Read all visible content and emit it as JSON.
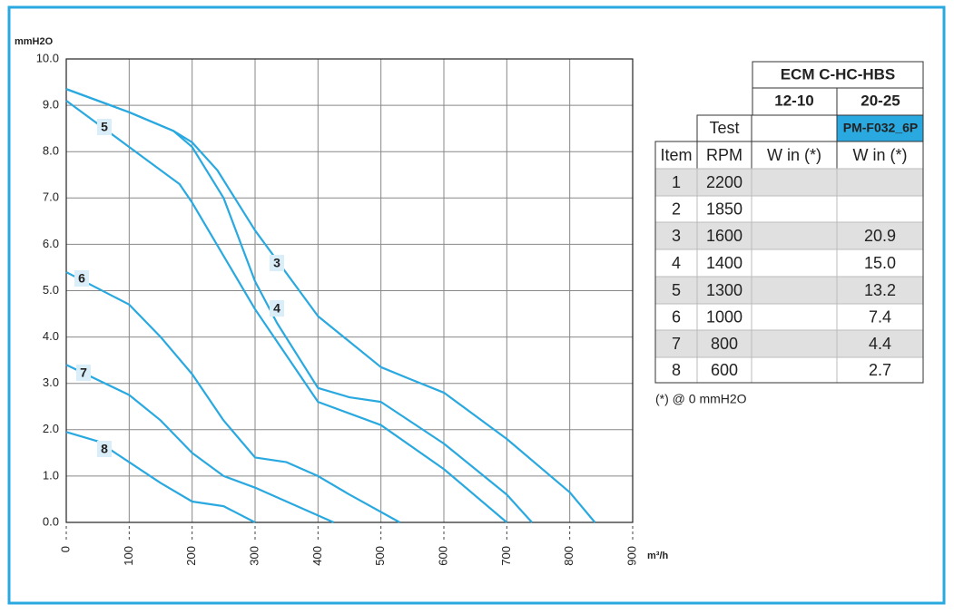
{
  "chart_data": {
    "type": "line",
    "y_label": "mmH2O",
    "x_label": "m³/h",
    "xlim": [
      0,
      900
    ],
    "xticks": [
      0,
      100,
      200,
      300,
      400,
      500,
      600,
      700,
      800,
      900
    ],
    "ylim": [
      0,
      10
    ],
    "yticks": [
      {
        "value": 0,
        "label": "0.0"
      },
      {
        "value": 1,
        "label": "1.0"
      },
      {
        "value": 2,
        "label": "2.0"
      },
      {
        "value": 3,
        "label": "3.0"
      },
      {
        "value": 4,
        "label": "4.0"
      },
      {
        "value": 5,
        "label": "5.0"
      },
      {
        "value": 6,
        "label": "6.0"
      },
      {
        "value": 7,
        "label": "7.0"
      },
      {
        "value": 8,
        "label": "8.0"
      },
      {
        "value": 9,
        "label": "9.0"
      },
      {
        "value": 10,
        "label": "10.0"
      }
    ],
    "grid": true,
    "series": [
      {
        "name": "3",
        "color": "#29a9e0",
        "x": [
          0,
          100,
          170,
          200,
          240,
          300,
          400,
          500,
          545,
          600,
          700,
          800,
          840
        ],
        "values": [
          9.35,
          8.85,
          8.45,
          8.2,
          7.6,
          6.3,
          4.45,
          3.35,
          3.1,
          2.8,
          1.8,
          0.65,
          0
        ]
      },
      {
        "name": "4",
        "color": "#29a9e0",
        "x": [
          0,
          100,
          170,
          200,
          250,
          300,
          335,
          400,
          450,
          500,
          600,
          700,
          740
        ],
        "values": [
          9.35,
          8.85,
          8.45,
          8.1,
          7.0,
          5.2,
          4.3,
          2.9,
          2.7,
          2.6,
          1.7,
          0.6,
          0
        ]
      },
      {
        "name": "5",
        "color": "#29a9e0",
        "x": [
          0,
          100,
          180,
          200,
          300,
          400,
          500,
          600,
          700
        ],
        "values": [
          9.1,
          8.1,
          7.3,
          6.9,
          4.6,
          2.6,
          2.1,
          1.15,
          0
        ]
      },
      {
        "name": "6",
        "color": "#29a9e0",
        "x": [
          0,
          100,
          150,
          200,
          250,
          300,
          350,
          400,
          450,
          530
        ],
        "values": [
          5.4,
          4.7,
          4.0,
          3.2,
          2.2,
          1.4,
          1.3,
          1.0,
          0.6,
          0
        ]
      },
      {
        "name": "7",
        "color": "#29a9e0",
        "x": [
          0,
          100,
          150,
          200,
          250,
          300,
          350,
          425
        ],
        "values": [
          3.4,
          2.75,
          2.2,
          1.5,
          1.0,
          0.75,
          0.45,
          0
        ]
      },
      {
        "name": "8",
        "color": "#29a9e0",
        "x": [
          0,
          50,
          100,
          150,
          200,
          250,
          300
        ],
        "values": [
          1.95,
          1.75,
          1.3,
          0.85,
          0.45,
          0.35,
          0
        ]
      }
    ]
  },
  "table": {
    "model": "ECM C-HC-HBS",
    "size_a": "12-10",
    "size_b": "20-25",
    "test": "Test",
    "motor": "PM-F032_6P",
    "headers": [
      "Item",
      "RPM",
      "W in (*)",
      "W in (*)"
    ],
    "rows": [
      {
        "item": "1",
        "rpm": "2200"
      },
      {
        "item": "2",
        "rpm": "1850"
      },
      {
        "item": "3",
        "rpm": "1600",
        "w": "20.9"
      },
      {
        "item": "4",
        "rpm": "1400",
        "w": "15.0"
      },
      {
        "item": "5",
        "rpm": "1300",
        "w": "13.2"
      },
      {
        "item": "6",
        "rpm": "1000",
        "w": "7.4"
      },
      {
        "item": "7",
        "rpm": "800",
        "w": "4.4"
      },
      {
        "item": "8",
        "rpm": "600",
        "w": "2.7"
      }
    ],
    "footnote": "(*) @ 0 mmH2O"
  }
}
